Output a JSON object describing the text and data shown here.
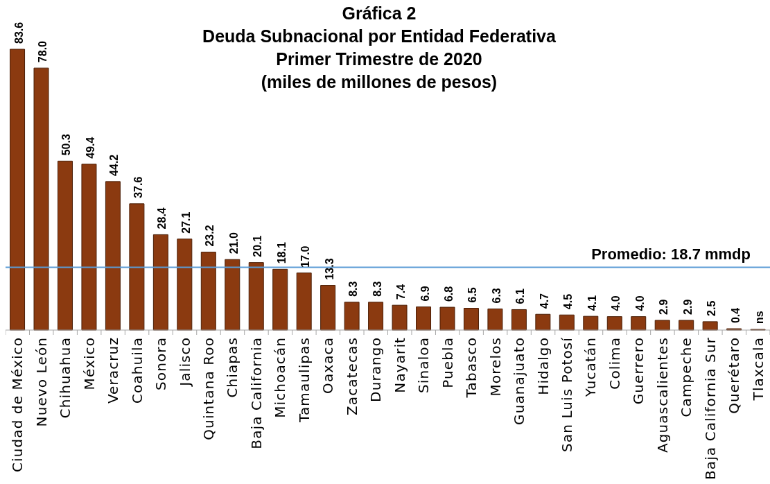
{
  "chart_data": {
    "type": "bar",
    "title": "Gráfica 2\nDeuda Subnacional por Entidad Federativa\nPrimer Trimestre de 2020\n(miles de millones de pesos)",
    "categories": [
      "Ciudad de México",
      "Nuevo León",
      "Chihuahua",
      "México",
      "Veracruz",
      "Coahuila",
      "Sonora",
      "Jalisco",
      "Quintana Roo",
      "Chiapas",
      "Baja California",
      "Michoacán",
      "Tamaulipas",
      "Oaxaca",
      "Zacatecas",
      "Durango",
      "Nayarit",
      "Sinaloa",
      "Puebla",
      "Tabasco",
      "Morelos",
      "Guanajuato",
      "Hidalgo",
      "San Luis Potosí",
      "Yucatán",
      "Colima",
      "Guerrero",
      "Aguascalientes",
      "Campeche",
      "Baja California Sur",
      "Querétaro",
      "Tlaxcala"
    ],
    "values": [
      83.6,
      78.0,
      50.3,
      49.4,
      44.2,
      37.6,
      28.4,
      27.1,
      23.2,
      21.0,
      20.1,
      18.1,
      17.0,
      13.3,
      8.3,
      8.3,
      7.4,
      6.9,
      6.8,
      6.5,
      6.3,
      6.1,
      4.7,
      4.5,
      4.1,
      4.0,
      4.0,
      2.9,
      2.9,
      2.5,
      0.4,
      0.0
    ],
    "value_labels": [
      "83.6",
      "78.0",
      "50.3",
      "49.4",
      "44.2",
      "37.6",
      "28.4",
      "27.1",
      "23.2",
      "21.0",
      "20.1",
      "18.1",
      "17.0",
      "13.3",
      "8.3",
      "8.3",
      "7.4",
      "6.9",
      "6.8",
      "6.5",
      "6.3",
      "6.1",
      "4.7",
      "4.5",
      "4.1",
      "4.0",
      "4.0",
      "2.9",
      "2.9",
      "2.5",
      "0.4",
      "ns"
    ],
    "color": "#8b3a10",
    "tick_labels": "x",
    "ref_lines": [
      {
        "axis": "y",
        "value": 18.7,
        "label": "Promedio: 18.7 mmdp",
        "color": "#5b9bd5"
      }
    ]
  }
}
